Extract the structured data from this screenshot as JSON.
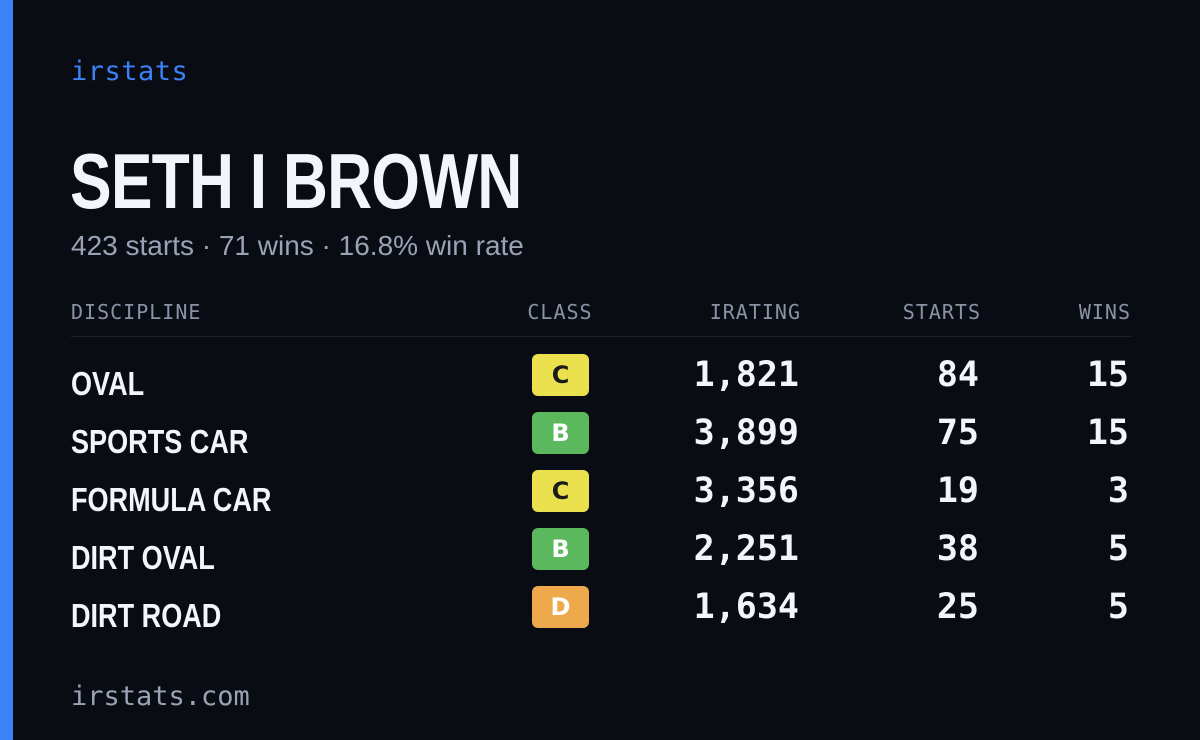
{
  "brand": "irstats",
  "driver": {
    "name": "SETH I BROWN",
    "summary": "423 starts · 71 wins · 16.8% win rate"
  },
  "table": {
    "headers": {
      "discipline": "DISCIPLINE",
      "class": "CLASS",
      "irating": "IRATING",
      "starts": "STARTS",
      "wins": "WINS"
    },
    "rows": [
      {
        "discipline": "OVAL",
        "class": "C",
        "irating": "1,821",
        "starts": "84",
        "wins": "15"
      },
      {
        "discipline": "SPORTS CAR",
        "class": "B",
        "irating": "3,899",
        "starts": "75",
        "wins": "15"
      },
      {
        "discipline": "FORMULA CAR",
        "class": "C",
        "irating": "3,356",
        "starts": "19",
        "wins": "3"
      },
      {
        "discipline": "DIRT OVAL",
        "class": "B",
        "irating": "2,251",
        "starts": "38",
        "wins": "5"
      },
      {
        "discipline": "DIRT ROAD",
        "class": "D",
        "irating": "1,634",
        "starts": "25",
        "wins": "5"
      }
    ]
  },
  "class_colors": {
    "B": {
      "bg": "#5cb85c",
      "fg": "#ffffff"
    },
    "C": {
      "bg": "#ebe14f",
      "fg": "#1a1a1a"
    },
    "D": {
      "bg": "#eea94c",
      "fg": "#ffffff"
    }
  },
  "colors": {
    "accent": "#3b82f6",
    "background": "#0a0c13"
  },
  "footer": "irstats.com"
}
